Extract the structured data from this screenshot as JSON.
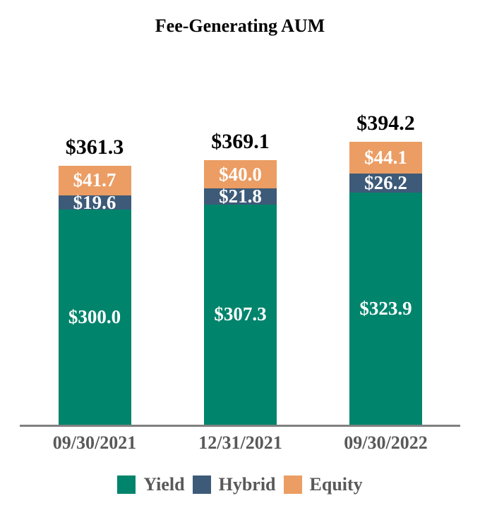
{
  "chart_data": {
    "type": "bar",
    "stacked": true,
    "title": "Fee-Generating AUM",
    "categories": [
      "09/30/2021",
      "12/31/2021",
      "09/30/2022"
    ],
    "series": [
      {
        "name": "Yield",
        "color": "#00846C",
        "values": [
          300.0,
          307.3,
          323.9
        ],
        "data_labels": [
          "$300.0",
          "$307.3",
          "$323.9"
        ]
      },
      {
        "name": "Hybrid",
        "color": "#3D5A78",
        "values": [
          19.6,
          21.8,
          26.2
        ],
        "data_labels": [
          "$19.6",
          "$21.8",
          "$26.2"
        ]
      },
      {
        "name": "Equity",
        "color": "#EB9D63",
        "values": [
          41.7,
          40.0,
          44.1
        ],
        "data_labels": [
          "$41.7",
          "$40.0",
          "$44.1"
        ]
      }
    ],
    "totals": [
      361.3,
      369.1,
      394.2
    ],
    "total_labels": [
      "$361.3",
      "$369.1",
      "$394.2"
    ],
    "legend": {
      "position": "bottom",
      "entries": [
        "Yield",
        "Hybrid",
        "Equity"
      ]
    },
    "axes": {
      "y_axis_visible": false,
      "gridlines": false
    }
  },
  "styles": {
    "background": "#ffffff",
    "total_label_color": "#000000",
    "segment_label_color": "#ffffff",
    "axis_text_color": "#595959",
    "axis_line_color": "#808080"
  }
}
